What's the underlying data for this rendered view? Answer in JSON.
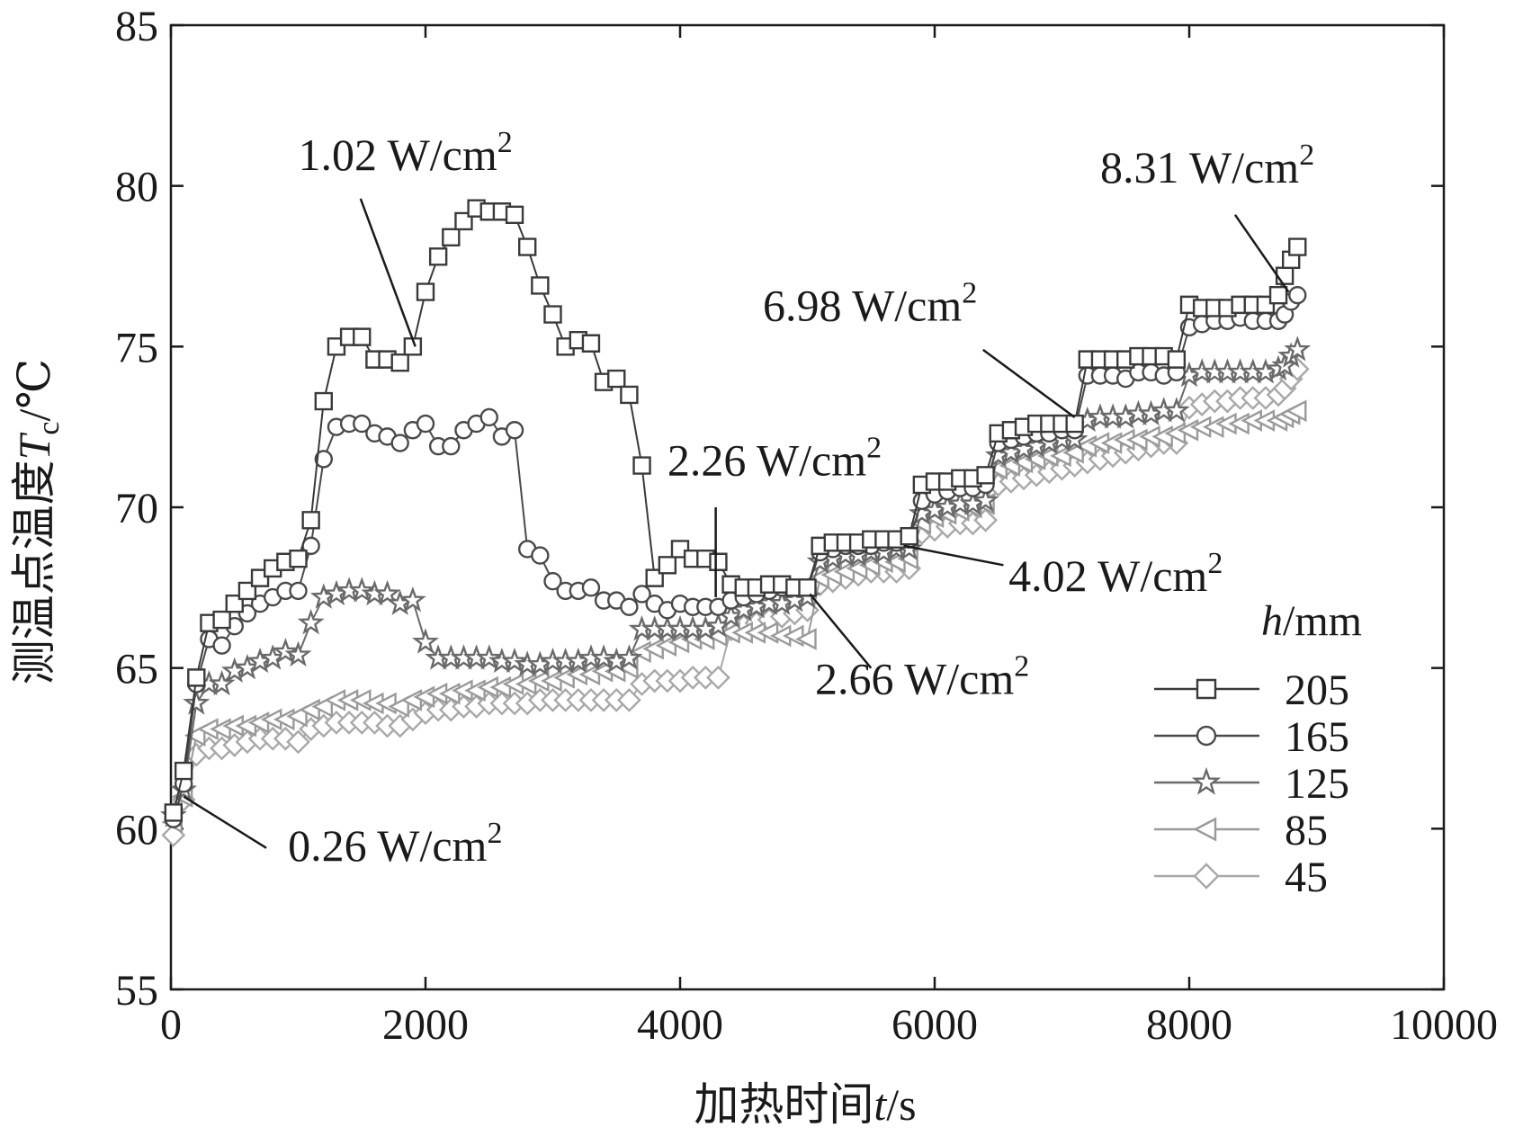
{
  "chart_data": {
    "type": "line",
    "xlabel": "加热时间t/s",
    "ylabel": "测温点温度T c/℃",
    "ylabel_parts": {
      "pre": "测温点温度",
      "var": "T",
      "sub": "c",
      "unit": "/℃"
    },
    "xlabel_parts": {
      "pre": "加热时间",
      "var": "t",
      "unit": "/s"
    },
    "xlim": [
      0,
      10000
    ],
    "ylim": [
      55,
      85
    ],
    "xticks": [
      0,
      2000,
      4000,
      6000,
      8000,
      10000
    ],
    "yticks": [
      55,
      60,
      65,
      70,
      75,
      80,
      85
    ],
    "legend_title": "h/mm",
    "legend_title_parts": {
      "var": "h",
      "unit": "/mm"
    },
    "legend_position": "bottom-right",
    "grid": false,
    "series": [
      {
        "name": "205",
        "marker": "square",
        "color": "#3a3a3a",
        "x": [
          20,
          100,
          200,
          300,
          400,
          500,
          600,
          700,
          800,
          900,
          1000,
          1100,
          1200,
          1300,
          1400,
          1500,
          1600,
          1700,
          1800,
          1900,
          2000,
          2100,
          2200,
          2300,
          2400,
          2500,
          2600,
          2700,
          2800,
          2900,
          3000,
          3100,
          3200,
          3300,
          3400,
          3500,
          3600,
          3700,
          3800,
          3900,
          4000,
          4100,
          4200,
          4300,
          4400,
          4500,
          4600,
          4700,
          4800,
          4900,
          5000,
          5100,
          5200,
          5300,
          5400,
          5500,
          5600,
          5700,
          5800,
          5900,
          6000,
          6100,
          6200,
          6300,
          6400,
          6500,
          6600,
          6700,
          6800,
          6900,
          7000,
          7100,
          7200,
          7300,
          7400,
          7500,
          7600,
          7700,
          7800,
          7900,
          8000,
          8100,
          8200,
          8300,
          8400,
          8500,
          8600,
          8700,
          8750,
          8800,
          8850
        ],
        "y": [
          60.5,
          61.8,
          64.7,
          66.4,
          66.5,
          67.0,
          67.4,
          67.8,
          68.1,
          68.3,
          68.4,
          69.6,
          73.3,
          75.0,
          75.3,
          75.3,
          74.6,
          74.6,
          74.5,
          75.0,
          76.7,
          77.8,
          78.4,
          78.9,
          79.3,
          79.2,
          79.2,
          79.1,
          78.1,
          76.9,
          76.0,
          75.0,
          75.2,
          75.1,
          73.9,
          74.0,
          73.5,
          71.3,
          67.8,
          68.2,
          68.7,
          68.4,
          68.4,
          68.3,
          67.6,
          67.5,
          67.5,
          67.6,
          67.6,
          67.5,
          67.5,
          68.8,
          68.9,
          68.9,
          68.9,
          69.0,
          69.0,
          69.0,
          69.1,
          70.7,
          70.8,
          70.8,
          70.9,
          70.9,
          71.0,
          72.3,
          72.4,
          72.5,
          72.6,
          72.6,
          72.6,
          72.6,
          74.6,
          74.6,
          74.6,
          74.6,
          74.7,
          74.7,
          74.7,
          74.6,
          76.3,
          76.2,
          76.2,
          76.2,
          76.3,
          76.3,
          76.3,
          76.6,
          77.2,
          77.7,
          78.1
        ]
      },
      {
        "name": "165",
        "marker": "circle",
        "color": "#4a4a4a",
        "x": [
          20,
          100,
          200,
          300,
          400,
          500,
          600,
          700,
          800,
          900,
          1000,
          1100,
          1200,
          1300,
          1400,
          1500,
          1600,
          1700,
          1800,
          1900,
          2000,
          2100,
          2200,
          2300,
          2400,
          2500,
          2600,
          2700,
          2800,
          2900,
          3000,
          3100,
          3200,
          3300,
          3400,
          3500,
          3600,
          3700,
          3800,
          3900,
          4000,
          4100,
          4200,
          4300,
          4400,
          4500,
          4600,
          4700,
          4800,
          4900,
          5000,
          5100,
          5200,
          5300,
          5400,
          5500,
          5600,
          5700,
          5800,
          5900,
          6000,
          6100,
          6200,
          6300,
          6400,
          6500,
          6600,
          6700,
          6800,
          6900,
          7000,
          7100,
          7200,
          7300,
          7400,
          7500,
          7600,
          7700,
          7800,
          7900,
          8000,
          8100,
          8200,
          8300,
          8400,
          8500,
          8600,
          8700,
          8750,
          8800,
          8850
        ],
        "y": [
          60.3,
          61.4,
          64.5,
          65.9,
          65.7,
          66.3,
          66.7,
          67.0,
          67.2,
          67.4,
          67.4,
          68.8,
          71.5,
          72.5,
          72.6,
          72.6,
          72.3,
          72.2,
          72.0,
          72.4,
          72.6,
          71.9,
          71.9,
          72.4,
          72.6,
          72.8,
          72.2,
          72.4,
          68.7,
          68.5,
          67.7,
          67.4,
          67.4,
          67.5,
          67.1,
          67.1,
          66.9,
          67.3,
          67.0,
          66.8,
          67.0,
          66.9,
          66.9,
          66.9,
          67.1,
          67.2,
          67.3,
          67.4,
          67.5,
          67.5,
          67.5,
          68.6,
          68.7,
          68.8,
          68.8,
          68.8,
          68.9,
          68.9,
          69.0,
          70.2,
          70.4,
          70.5,
          70.6,
          70.6,
          70.7,
          72.0,
          72.1,
          72.2,
          72.3,
          72.3,
          72.4,
          72.4,
          74.1,
          74.1,
          74.1,
          74.0,
          74.2,
          74.2,
          74.1,
          74.2,
          75.6,
          75.7,
          75.8,
          75.8,
          75.9,
          75.8,
          75.8,
          75.8,
          76.0,
          76.4,
          76.6
        ]
      },
      {
        "name": "125",
        "marker": "star",
        "color": "#6a6a6a",
        "x": [
          20,
          100,
          200,
          300,
          400,
          500,
          600,
          700,
          800,
          900,
          1000,
          1100,
          1200,
          1300,
          1400,
          1500,
          1600,
          1700,
          1800,
          1900,
          2000,
          2100,
          2200,
          2300,
          2400,
          2500,
          2600,
          2700,
          2800,
          2900,
          3000,
          3100,
          3200,
          3300,
          3400,
          3500,
          3600,
          3700,
          3800,
          3900,
          4000,
          4100,
          4200,
          4300,
          4400,
          4500,
          4600,
          4700,
          4800,
          4900,
          5000,
          5100,
          5200,
          5300,
          5400,
          5500,
          5600,
          5700,
          5800,
          5900,
          6000,
          6100,
          6200,
          6300,
          6400,
          6500,
          6600,
          6700,
          6800,
          6900,
          7000,
          7100,
          7200,
          7300,
          7400,
          7500,
          7600,
          7700,
          7800,
          7900,
          8000,
          8100,
          8200,
          8300,
          8400,
          8500,
          8600,
          8700,
          8750,
          8800,
          8850
        ],
        "y": [
          60.4,
          61.2,
          63.9,
          64.5,
          64.5,
          64.9,
          65.0,
          65.2,
          65.3,
          65.5,
          65.4,
          66.4,
          67.2,
          67.3,
          67.4,
          67.4,
          67.3,
          67.3,
          67.0,
          67.1,
          65.8,
          65.3,
          65.3,
          65.3,
          65.3,
          65.3,
          65.2,
          65.2,
          65.1,
          65.1,
          65.2,
          65.2,
          65.2,
          65.3,
          65.3,
          65.2,
          65.3,
          66.2,
          66.2,
          66.2,
          66.2,
          66.2,
          66.2,
          66.3,
          66.6,
          66.8,
          66.9,
          67.0,
          67.0,
          67.1,
          67.2,
          68.3,
          68.4,
          68.5,
          68.5,
          68.6,
          68.6,
          68.7,
          68.7,
          69.8,
          69.9,
          70.0,
          70.1,
          70.1,
          70.2,
          71.6,
          71.7,
          71.8,
          71.9,
          72.0,
          72.1,
          72.1,
          72.7,
          72.8,
          72.8,
          72.8,
          72.9,
          72.9,
          73.0,
          73.0,
          74.1,
          74.2,
          74.2,
          74.2,
          74.2,
          74.2,
          74.2,
          74.3,
          74.4,
          74.7,
          74.9
        ]
      },
      {
        "name": "85",
        "marker": "triangle-left",
        "color": "#9a9a9a",
        "x": [
          20,
          100,
          200,
          300,
          400,
          500,
          600,
          700,
          800,
          900,
          1000,
          1100,
          1200,
          1300,
          1400,
          1500,
          1600,
          1700,
          1800,
          1900,
          2000,
          2100,
          2200,
          2300,
          2400,
          2500,
          2600,
          2700,
          2800,
          2900,
          3000,
          3100,
          3200,
          3300,
          3400,
          3500,
          3600,
          3700,
          3800,
          3900,
          4000,
          4100,
          4200,
          4300,
          4400,
          4500,
          4600,
          4700,
          4800,
          4900,
          5000,
          5100,
          5200,
          5300,
          5400,
          5500,
          5600,
          5700,
          5800,
          5900,
          6000,
          6100,
          6200,
          6300,
          6400,
          6500,
          6600,
          6700,
          6800,
          6900,
          7000,
          7100,
          7200,
          7300,
          7400,
          7500,
          7600,
          7700,
          7800,
          7900,
          8000,
          8100,
          8200,
          8300,
          8400,
          8500,
          8600,
          8700,
          8750,
          8800,
          8850
        ],
        "y": [
          60.2,
          61.0,
          62.9,
          63.1,
          63.1,
          63.2,
          63.2,
          63.3,
          63.4,
          63.4,
          63.5,
          63.7,
          63.8,
          64.0,
          64.0,
          64.0,
          63.9,
          63.9,
          63.8,
          64.0,
          64.1,
          64.2,
          64.2,
          64.3,
          64.3,
          64.4,
          64.4,
          64.5,
          64.5,
          64.6,
          64.6,
          64.7,
          64.8,
          64.8,
          64.9,
          64.9,
          65.0,
          65.5,
          65.6,
          65.7,
          65.8,
          65.9,
          65.9,
          66.0,
          66.1,
          66.1,
          66.1,
          66.1,
          66.0,
          66.0,
          65.9,
          67.8,
          67.9,
          68.0,
          68.1,
          68.2,
          68.3,
          68.3,
          68.4,
          69.5,
          69.7,
          69.8,
          69.9,
          70.0,
          70.1,
          71.2,
          71.3,
          71.4,
          71.5,
          71.6,
          71.6,
          71.7,
          71.9,
          72.0,
          72.0,
          72.1,
          72.1,
          72.2,
          72.2,
          72.3,
          72.4,
          72.5,
          72.5,
          72.6,
          72.6,
          72.7,
          72.7,
          72.7,
          72.8,
          72.9,
          73.0
        ]
      },
      {
        "name": "45",
        "marker": "diamond",
        "color": "#a8a8a8",
        "x": [
          20,
          100,
          200,
          300,
          400,
          500,
          600,
          700,
          800,
          900,
          1000,
          1100,
          1200,
          1300,
          1400,
          1500,
          1600,
          1700,
          1800,
          1900,
          2000,
          2100,
          2200,
          2300,
          2400,
          2500,
          2600,
          2700,
          2800,
          2900,
          3000,
          3100,
          3200,
          3300,
          3400,
          3500,
          3600,
          3700,
          3800,
          3900,
          4000,
          4100,
          4200,
          4300,
          4400,
          4500,
          4600,
          4700,
          4800,
          4900,
          5000,
          5100,
          5200,
          5300,
          5400,
          5500,
          5600,
          5700,
          5800,
          5900,
          6000,
          6100,
          6200,
          6300,
          6400,
          6500,
          6600,
          6700,
          6800,
          6900,
          7000,
          7100,
          7200,
          7300,
          7400,
          7500,
          7600,
          7700,
          7800,
          7900,
          8000,
          8100,
          8200,
          8300,
          8400,
          8500,
          8600,
          8700,
          8750,
          8800,
          8850
        ],
        "y": [
          59.8,
          60.9,
          62.3,
          62.5,
          62.5,
          62.6,
          62.7,
          62.8,
          62.8,
          62.8,
          62.7,
          63.1,
          63.2,
          63.3,
          63.3,
          63.3,
          63.3,
          63.2,
          63.2,
          63.4,
          63.6,
          63.7,
          63.7,
          63.8,
          63.8,
          63.9,
          63.9,
          63.9,
          63.9,
          64.0,
          64.0,
          64.0,
          64.0,
          64.0,
          64.0,
          64.0,
          64.0,
          64.5,
          64.6,
          64.6,
          64.6,
          64.7,
          64.7,
          64.7,
          66.2,
          66.3,
          66.4,
          66.5,
          66.6,
          66.7,
          66.8,
          67.6,
          67.7,
          67.8,
          67.9,
          68.0,
          68.0,
          68.0,
          68.1,
          69.2,
          69.3,
          69.4,
          69.5,
          69.5,
          69.6,
          70.7,
          70.8,
          70.9,
          71.0,
          71.1,
          71.2,
          71.3,
          71.4,
          71.5,
          71.6,
          71.7,
          71.8,
          71.9,
          72.0,
          72.0,
          73.1,
          73.2,
          73.3,
          73.3,
          73.4,
          73.4,
          73.4,
          73.5,
          73.7,
          74.0,
          74.3
        ]
      }
    ],
    "annotations": [
      {
        "id": "a1",
        "base": "1.02 W/cm",
        "sup": "2",
        "x": 1000,
        "y": 80.5,
        "point": [
          1920,
          75.0
        ],
        "anchor": [
          1490,
          79.6
        ]
      },
      {
        "id": "a2",
        "base": "8.31 W/cm",
        "sup": "2",
        "x": 7300,
        "y": 80.1,
        "point": [
          8780,
          76.7
        ],
        "anchor": [
          8360,
          79.1
        ]
      },
      {
        "id": "a3",
        "base": "6.98 W/cm",
        "sup": "2",
        "x": 4650,
        "y": 75.8,
        "point": [
          7100,
          72.8
        ],
        "anchor": [
          6380,
          74.9
        ]
      },
      {
        "id": "a4",
        "base": "2.26 W/cm",
        "sup": "2",
        "x": 3900,
        "y": 71.0,
        "point": [
          4280,
          67.2
        ],
        "anchor": [
          4280,
          70.0
        ]
      },
      {
        "id": "a5",
        "base": "4.02 W/cm",
        "sup": "2",
        "x": 6580,
        "y": 67.4,
        "point": [
          5760,
          68.8
        ],
        "anchor": [
          6540,
          68.2
        ]
      },
      {
        "id": "a6",
        "base": "2.66 W/cm",
        "sup": "2",
        "x": 5060,
        "y": 64.2,
        "point": [
          5020,
          67.3
        ],
        "anchor": [
          5500,
          65.0
        ]
      },
      {
        "id": "a7",
        "base": "0.26 W/cm",
        "sup": "2",
        "x": 920,
        "y": 59.0,
        "point": [
          100,
          61.0
        ],
        "anchor": [
          750,
          59.4
        ]
      }
    ]
  }
}
